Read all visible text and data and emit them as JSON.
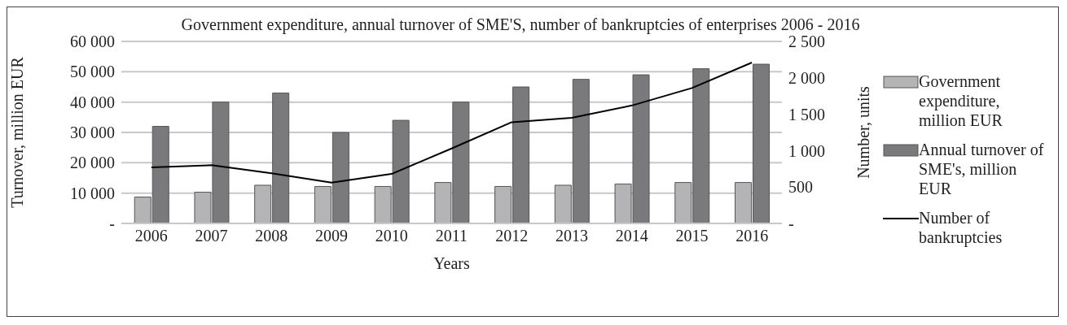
{
  "chart_data": {
    "type": "bar",
    "title": "Government expenditure, annual turnover of SME'S, number of bankruptcies of enterprises 2006 - 2016",
    "xlabel": "Years",
    "ylabel": "Turnover, million  EUR",
    "y2label": "Number,  units",
    "categories": [
      "2006",
      "2007",
      "2008",
      "2009",
      "2010",
      "2011",
      "2012",
      "2013",
      "2014",
      "2015",
      "2016"
    ],
    "series": [
      {
        "name": "Government expenditure, million EUR",
        "color": "#b4b4b6",
        "values": [
          8700,
          10300,
          12600,
          12200,
          12200,
          13500,
          12200,
          12600,
          13000,
          13500,
          13500
        ]
      },
      {
        "name": "Annual turnover of SME's, million EUR",
        "color": "#7a7a7c",
        "values": [
          32000,
          40000,
          43000,
          30000,
          34000,
          40000,
          45000,
          47500,
          49000,
          51000,
          52500
        ]
      },
      {
        "name": "Number of bankruptcies",
        "type": "line",
        "axis": "y2",
        "color": "#000000",
        "values": [
          770,
          800,
          690,
          560,
          680,
          1030,
          1390,
          1450,
          1620,
          1860,
          2210
        ]
      }
    ],
    "ylim": [
      0,
      60000
    ],
    "yticks": [
      {
        "value": 0,
        "label": "-"
      },
      {
        "value": 10000,
        "label": "10 000"
      },
      {
        "value": 20000,
        "label": "20 000"
      },
      {
        "value": 30000,
        "label": "30 000"
      },
      {
        "value": 40000,
        "label": "40 000"
      },
      {
        "value": 50000,
        "label": "50 000"
      },
      {
        "value": 60000,
        "label": "60 000"
      }
    ],
    "y2lim": [
      0,
      2500
    ],
    "y2ticks": [
      {
        "value": 0,
        "label": "-"
      },
      {
        "value": 500,
        "label": "500"
      },
      {
        "value": 1000,
        "label": "1 000"
      },
      {
        "value": 1500,
        "label": "1 500"
      },
      {
        "value": 2000,
        "label": "2 000"
      },
      {
        "value": 2500,
        "label": "2 500"
      }
    ],
    "grid": "y",
    "legend": "right",
    "marker": "none",
    "line_style": "solid"
  }
}
